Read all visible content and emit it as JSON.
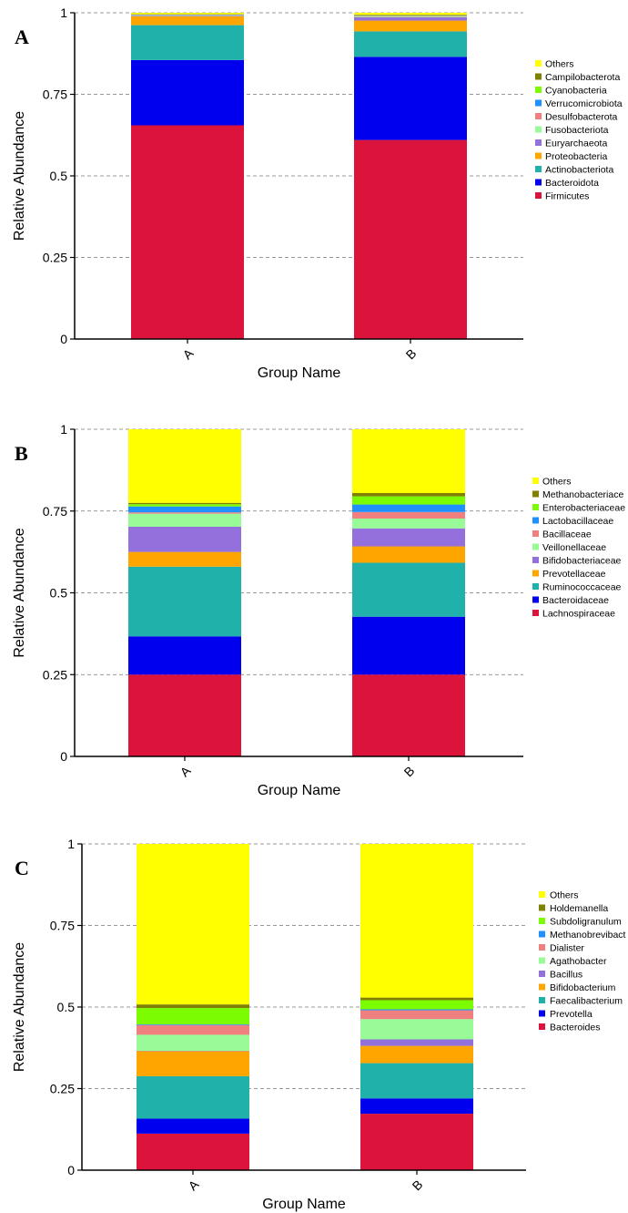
{
  "chart_data": [
    {
      "type": "bar",
      "stacked": true,
      "panel_label": "A",
      "xlabel": "Group Name",
      "ylabel": "Relative Abundance",
      "ylim": [
        0,
        1
      ],
      "yticks": [
        "0",
        "0.25",
        "0.5",
        "0.75",
        "1"
      ],
      "grid": "horizontal dashed",
      "legend_position": "right",
      "categories": [
        "A",
        "B"
      ],
      "series": [
        {
          "name": "Firmicutes",
          "color": "#dc143c",
          "values": [
            0.655,
            0.61
          ]
        },
        {
          "name": "Bacteroidota",
          "color": "#0000ee",
          "values": [
            0.2,
            0.255
          ]
        },
        {
          "name": "Actinobacteriota",
          "color": "#20b2aa",
          "values": [
            0.107,
            0.078
          ]
        },
        {
          "name": "Proteobacteria",
          "color": "#ffa500",
          "values": [
            0.027,
            0.033
          ]
        },
        {
          "name": "Euryarchaeota",
          "color": "#9370db",
          "values": [
            0.002,
            0.01
          ]
        },
        {
          "name": "Fusobacteriota",
          "color": "#98fb98",
          "values": [
            0.001,
            0.002
          ]
        },
        {
          "name": "Desulfobacterota",
          "color": "#f08080",
          "values": [
            0.001,
            0.002
          ]
        },
        {
          "name": "Verrucomicrobiota",
          "color": "#1e90ff",
          "values": [
            0.001,
            0.001
          ]
        },
        {
          "name": "Cyanobacteria",
          "color": "#7cfc00",
          "values": [
            0.001,
            0.001
          ]
        },
        {
          "name": "Campilobacterota",
          "color": "#808000",
          "values": [
            0.001,
            0.002
          ]
        },
        {
          "name": "Others",
          "color": "#ffff00",
          "values": [
            0.004,
            0.006
          ]
        }
      ]
    },
    {
      "type": "bar",
      "stacked": true,
      "panel_label": "B",
      "xlabel": "Group Name",
      "ylabel": "Relative Abundance",
      "ylim": [
        0,
        1
      ],
      "yticks": [
        "0",
        "0.25",
        "0.5",
        "0.75",
        "1"
      ],
      "grid": "horizontal dashed",
      "legend_position": "right",
      "categories": [
        "A",
        "B"
      ],
      "series": [
        {
          "name": "Lachnospiraceae",
          "color": "#dc143c",
          "values": [
            0.25,
            0.25
          ]
        },
        {
          "name": "Bacteroidaceae",
          "color": "#0000ee",
          "values": [
            0.117,
            0.177
          ]
        },
        {
          "name": "Ruminococcaceae",
          "color": "#20b2aa",
          "values": [
            0.213,
            0.165
          ]
        },
        {
          "name": "Prevotellaceae",
          "color": "#ffa500",
          "values": [
            0.045,
            0.05
          ]
        },
        {
          "name": "Bifidobacteriaceae",
          "color": "#9370db",
          "values": [
            0.077,
            0.055
          ]
        },
        {
          "name": "Veillonellaceae",
          "color": "#98fb98",
          "values": [
            0.04,
            0.03
          ]
        },
        {
          "name": "Bacillaceae",
          "color": "#f08080",
          "values": [
            0.004,
            0.02
          ]
        },
        {
          "name": "Lactobacillaceae",
          "color": "#1e90ff",
          "values": [
            0.018,
            0.023
          ]
        },
        {
          "name": "Enterobacteriaceae",
          "color": "#7cfc00",
          "values": [
            0.007,
            0.025
          ]
        },
        {
          "name": "Methanobacteriace",
          "color": "#808000",
          "values": [
            0.004,
            0.01
          ]
        },
        {
          "name": "Others",
          "color": "#ffff00",
          "values": [
            0.225,
            0.195
          ]
        }
      ]
    },
    {
      "type": "bar",
      "stacked": true,
      "panel_label": "C",
      "xlabel": "Group Name",
      "ylabel": "Relative Abundance",
      "ylim": [
        0,
        1
      ],
      "yticks": [
        "0",
        "0.25",
        "0.5",
        "0.75",
        "1"
      ],
      "grid": "horizontal dashed",
      "legend_position": "right",
      "categories": [
        "A",
        "B"
      ],
      "series": [
        {
          "name": "Bacteroides",
          "color": "#dc143c",
          "values": [
            0.112,
            0.173
          ]
        },
        {
          "name": "Prevotella",
          "color": "#0000ee",
          "values": [
            0.046,
            0.047
          ]
        },
        {
          "name": "Faecalibacterium",
          "color": "#20b2aa",
          "values": [
            0.13,
            0.108
          ]
        },
        {
          "name": "Bifidobacterium",
          "color": "#ffa500",
          "values": [
            0.077,
            0.053
          ]
        },
        {
          "name": "Bacillus",
          "color": "#9370db",
          "values": [
            0.001,
            0.02
          ]
        },
        {
          "name": "Agathobacter",
          "color": "#98fb98",
          "values": [
            0.049,
            0.062
          ]
        },
        {
          "name": "Dialister",
          "color": "#f08080",
          "values": [
            0.03,
            0.027
          ]
        },
        {
          "name": "Methanobrevibact",
          "color": "#1e90ff",
          "values": [
            0.002,
            0.003
          ]
        },
        {
          "name": "Subdoligranulum",
          "color": "#7cfc00",
          "values": [
            0.05,
            0.028
          ]
        },
        {
          "name": "Holdemanella",
          "color": "#808000",
          "values": [
            0.011,
            0.008
          ]
        },
        {
          "name": "Others",
          "color": "#ffff00",
          "values": [
            0.492,
            0.471
          ]
        }
      ]
    }
  ]
}
